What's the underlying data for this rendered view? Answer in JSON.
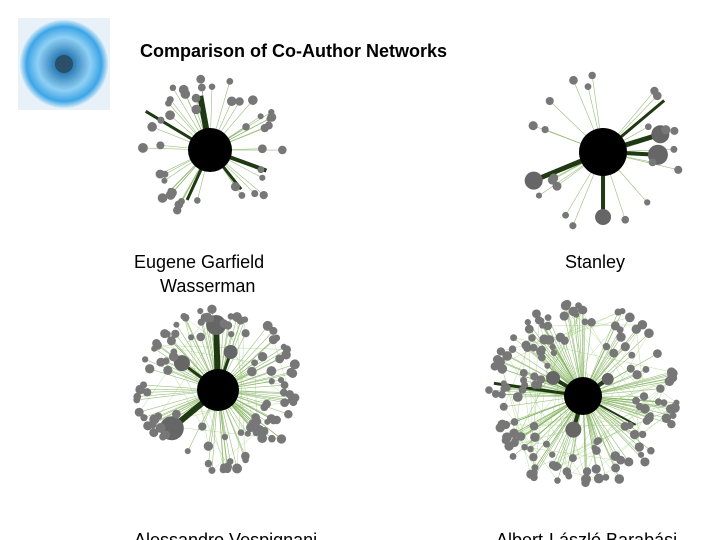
{
  "header": {
    "title": "Comparison of Co-Author Networks"
  },
  "labels": {
    "top_left": [
      "Eugene Garfield",
      "Wasserman"
    ],
    "top_right": "Stanley",
    "bottom_left": "Alessandro Vespignani",
    "bottom_right": "Albert-László Barabási"
  }
}
